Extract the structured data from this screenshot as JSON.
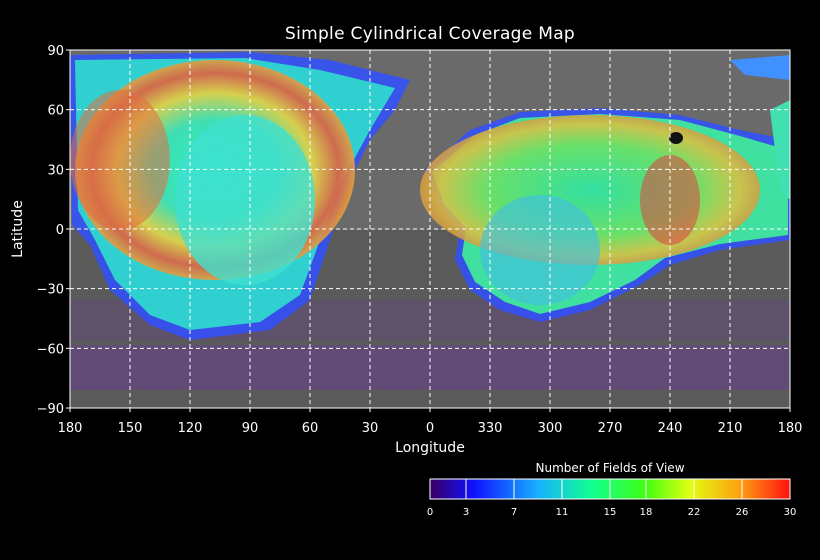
{
  "title": "Simple Cylindrical Coverage Map",
  "xlabel": "Longitude",
  "ylabel": "Latitude",
  "colorbar_title": "Number of Fields of View",
  "colors": {
    "background": "#000000",
    "grid": "#ffffff",
    "basemap": "#6e6e6e"
  },
  "chart_data": {
    "type": "heatmap",
    "projection": "simple-cylindrical",
    "x_ticks": [
      "180",
      "150",
      "120",
      "90",
      "60",
      "30",
      "0",
      "330",
      "300",
      "270",
      "240",
      "210",
      "180"
    ],
    "y_ticks": [
      "90",
      "60",
      "30",
      "0",
      "−30",
      "−60",
      "−90"
    ],
    "xlim": [
      180,
      -180
    ],
    "ylim": [
      -90,
      90
    ],
    "grid": true,
    "colorbar": {
      "ticks": [
        "0",
        "3",
        "7",
        "11",
        "15",
        "18",
        "22",
        "26",
        "30"
      ],
      "range": [
        0,
        30
      ],
      "colors": [
        "#3a0060",
        "#1010ff",
        "#18b0ff",
        "#10ff70",
        "#40ff10",
        "#e0ff10",
        "#ffa010",
        "#ff1010"
      ]
    }
  }
}
